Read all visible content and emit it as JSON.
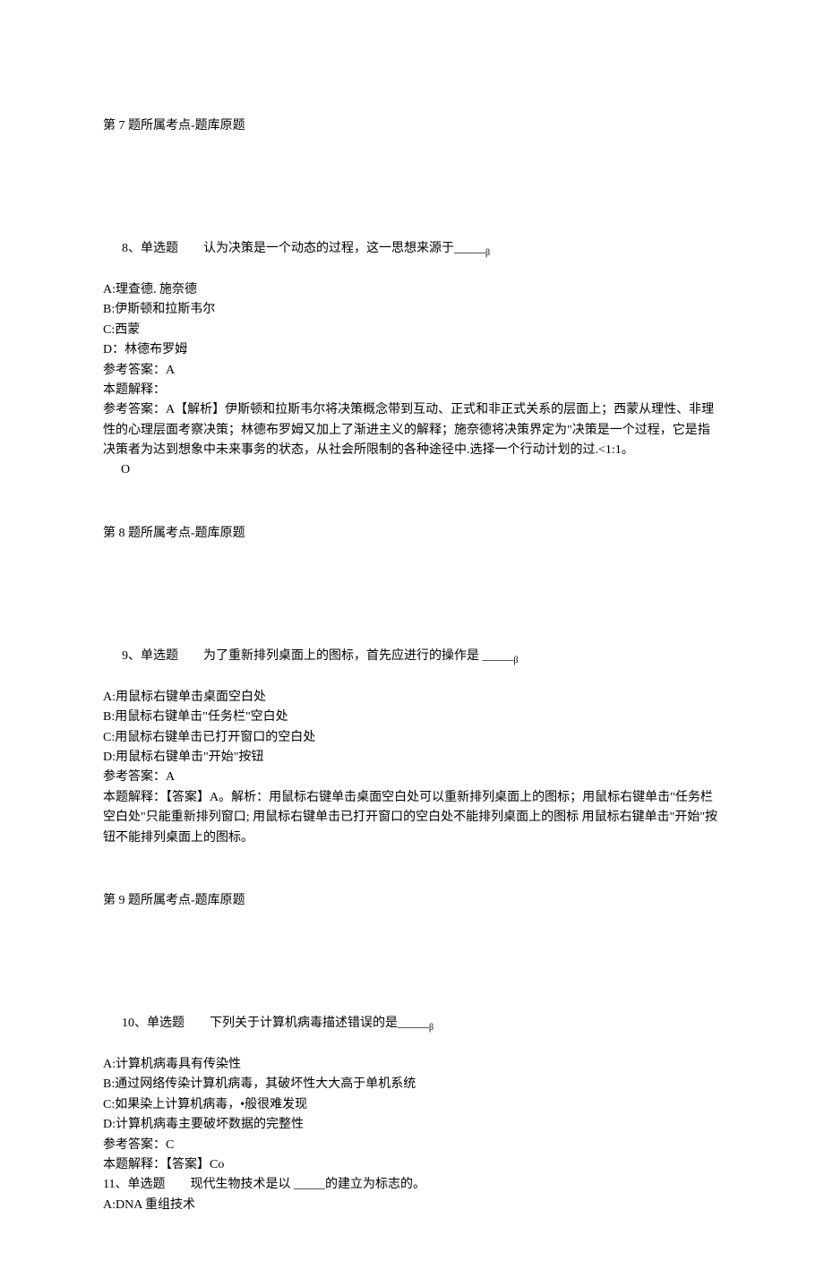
{
  "q7": {
    "topic": "第 7 题所属考点-题库原题"
  },
  "q8": {
    "header": "8、单选题　　认为决策是一个动态的过程，这一思想来源于_____",
    "blank_sub": "β",
    "optA": "A:理查德. 施奈德",
    "optB": "B:伊斯顿和拉斯韦尔",
    "optC": "C:西蒙",
    "optD": "D：林德布罗姆",
    "answer": "参考答案：A",
    "explain_label": "本题解释：",
    "explain_text": "参考答案：A【解析】伊斯顿和拉斯韦尔将决策概念带到互动、正式和非正式关系的层面上；西蒙从理性、非理性的心理层面考察决策；林德布罗姆又加上了渐进主义的解释；施奈德将决策界定为\"决策是一个过程，它是指决策者为达到想象中未来事务的状态，从社会所限制的各种途径中.选择一个行动计划的过.<1:1。",
    "trail": "O",
    "topic": "第 8 题所属考点-题库原题"
  },
  "q9": {
    "header": "9、单选题　　为了重新排列桌面上的图标，首先应进行的操作是 _____",
    "blank_sub": "β",
    "optA": "A:用鼠标右键单击桌面空白处",
    "optB": "B:用鼠标右键单击\"任务栏\"空白处",
    "optC": "C:用鼠标右键单击已打开窗口的空白处",
    "optD": "D:用鼠标右键单击\"开始\"按钮",
    "answer": "参考答案：A",
    "explain_label": "本题解释：【答案】A。解析：用鼠标右键单击桌面空白处可以重新排列桌面上的图标；用鼠标右键单击\"任务栏空白处\"只能重新排列窗口; 用鼠标右键单击已打开窗口的空白处不能排列桌面上的图标 用鼠标右键单击\"开始\"按钮不能排列桌面上的图标。",
    "topic": "第 9 题所属考点-题库原题"
  },
  "q10": {
    "header": "10、单选题　　下列关于计算机病毒描述错误的是_____",
    "blank_sub": "β",
    "optA": "A:计算机病毒具有传染性",
    "optB": "B:通过网络传染计算机病毒，其破坏性大大高于单机系统",
    "optC": "C:如果染上计算机病毒，•般很难发现",
    "optD": "D:计算机病毒主要破坏数据的完整性",
    "answer": "参考答案：C",
    "explain_label": "本题解释：【答案】Co"
  },
  "q11": {
    "header": "11、单选题　　现代生物技术是以 _____的建立为标志的。",
    "optA": "A:DNA 重组技术"
  }
}
